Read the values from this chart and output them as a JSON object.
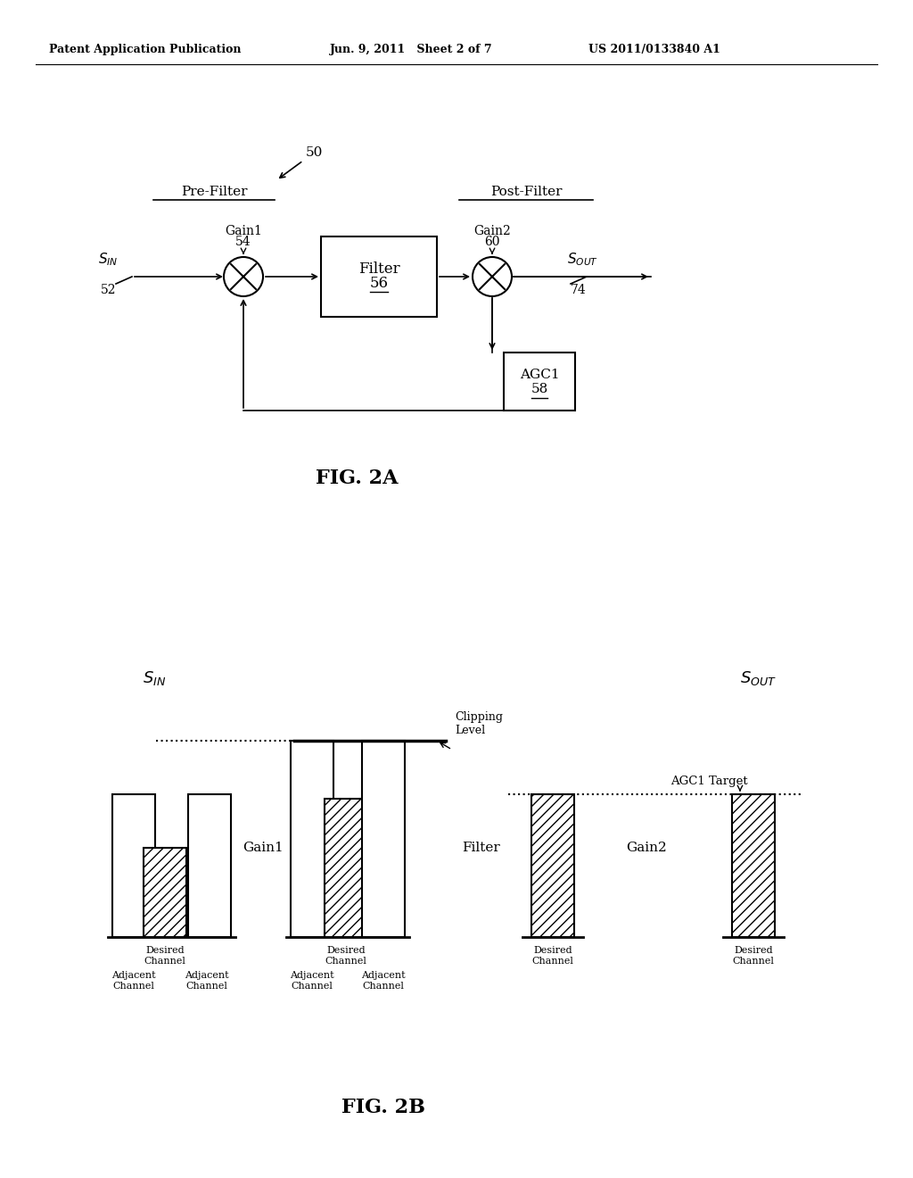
{
  "header_left": "Patent Application Publication",
  "header_mid": "Jun. 9, 2011   Sheet 2 of 7",
  "header_right": "US 2011/0133840 A1",
  "fig2a_label": "FIG. 2A",
  "fig2b_label": "FIG. 2B",
  "background_color": "#ffffff",
  "text_color": "#000000"
}
